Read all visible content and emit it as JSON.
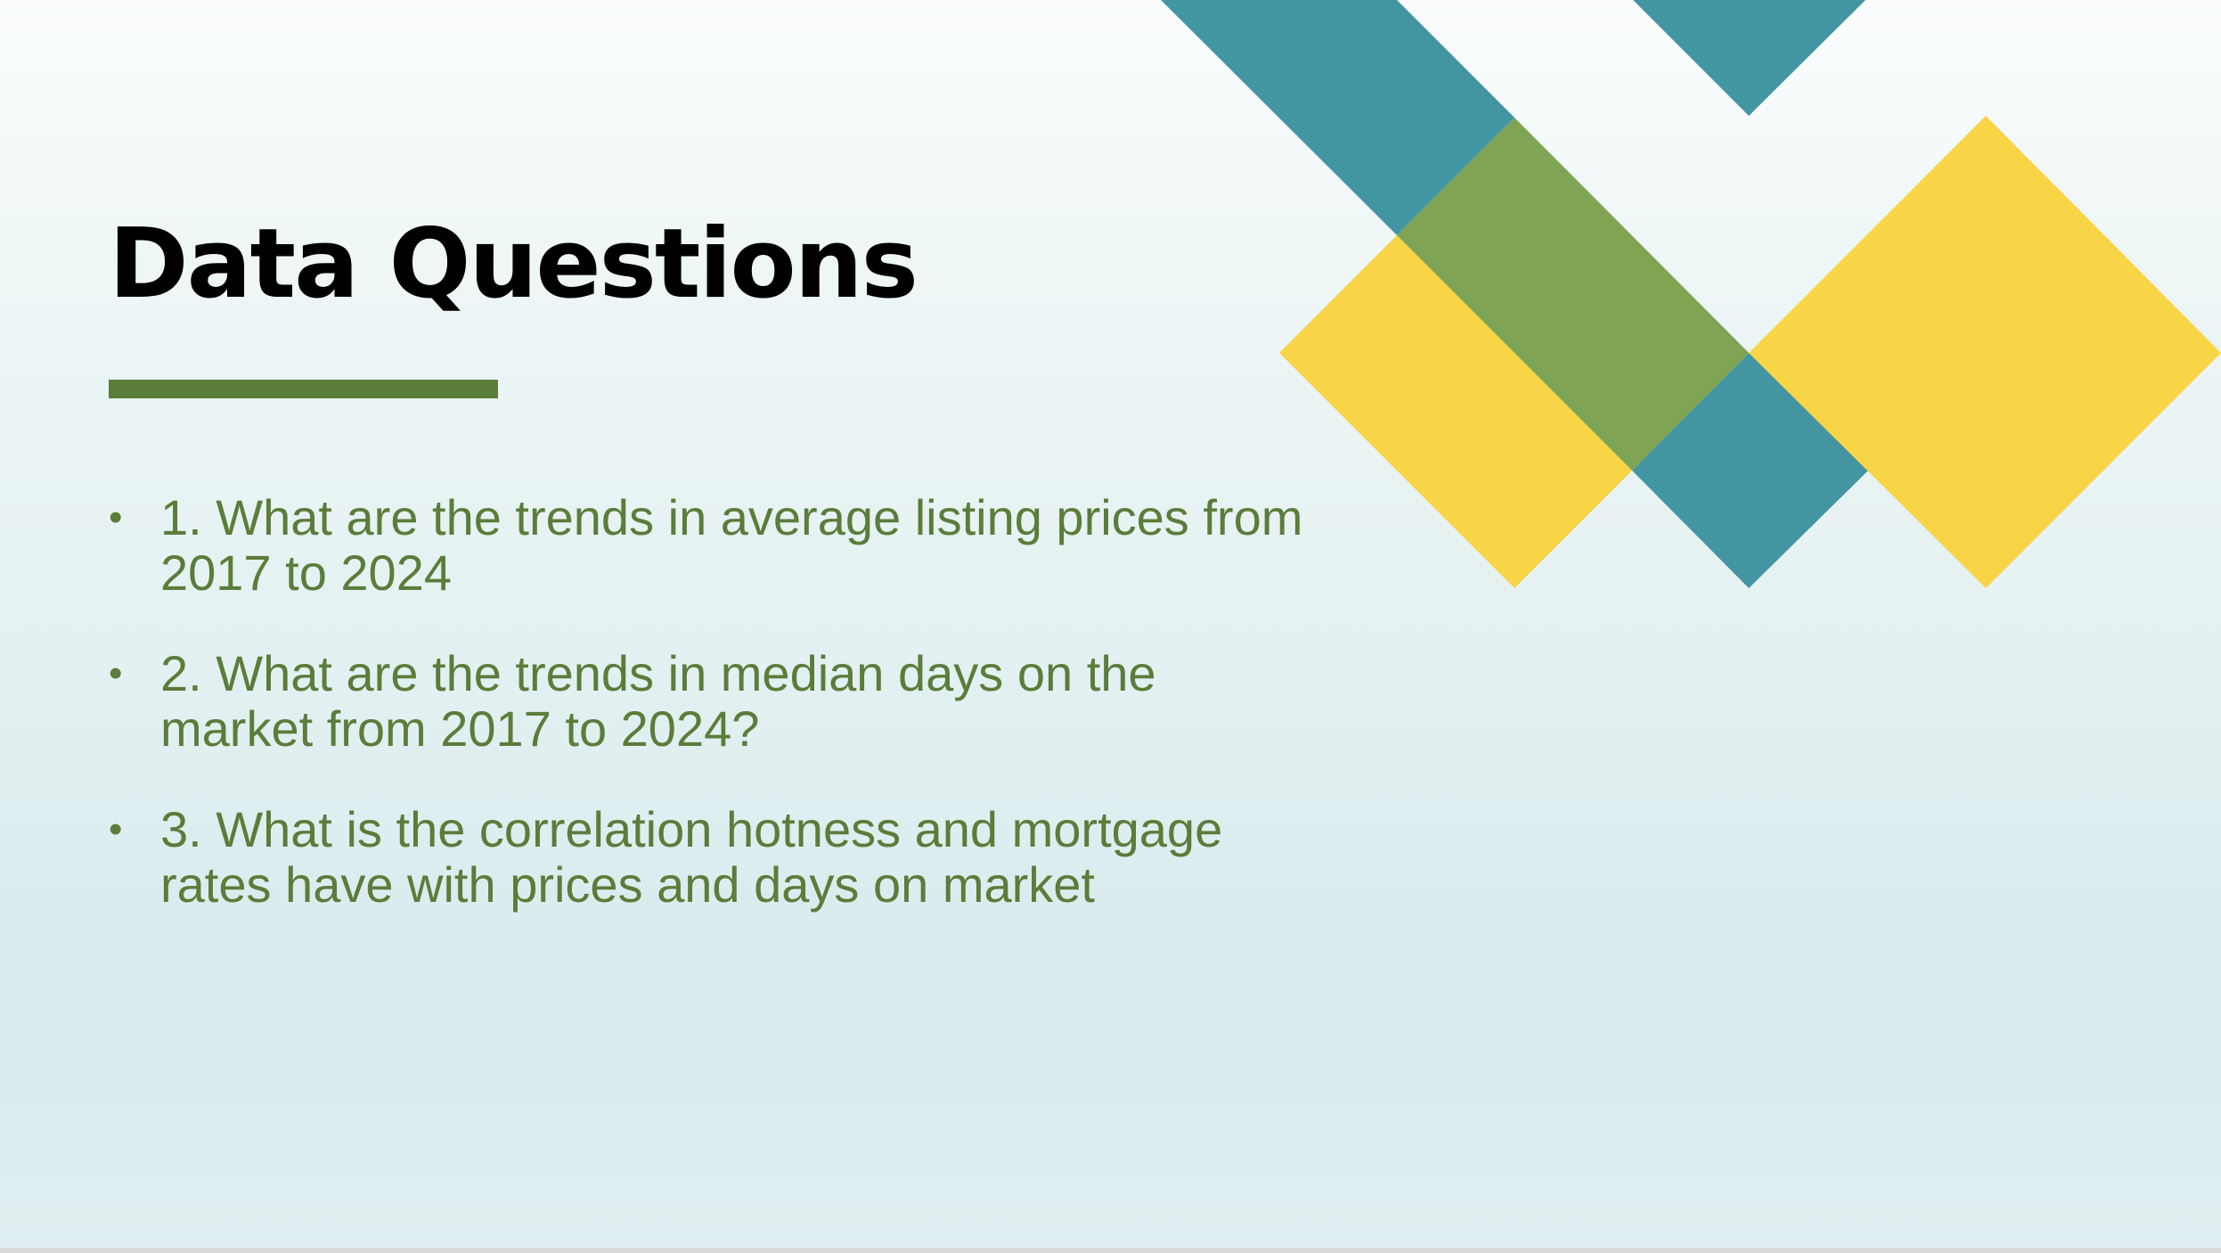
{
  "slide": {
    "title": "Data Questions",
    "bullets": [
      {
        "marker": "•",
        "text": "1. What are the trends in average listing prices from 2017 to 2024"
      },
      {
        "marker": "•",
        "text": "2. What are the trends in median days on the market from 2017 to 2024?"
      },
      {
        "marker": "•",
        "text": "3. What is the correlation hotness and mortgage rates have with prices and days on market"
      }
    ]
  },
  "colors": {
    "accent_green": "#5a7d3a",
    "teal": "#4495a2",
    "olive": "#7ea454",
    "yellow": "#f8d447",
    "title_text": "#000000"
  },
  "decor": {
    "icon": "geometric-diamond-pattern"
  }
}
